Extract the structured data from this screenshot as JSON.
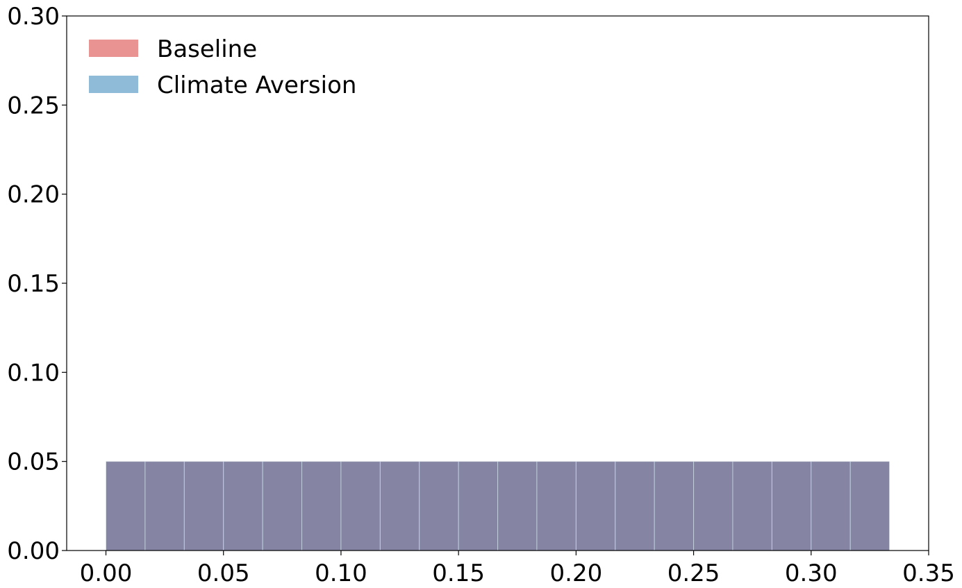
{
  "chart_data": {
    "type": "bar",
    "subtype": "histogram",
    "title": "",
    "xlabel": "",
    "ylabel": "",
    "xlim": [
      -0.0167,
      0.35
    ],
    "ylim": [
      0,
      0.3
    ],
    "grid": false,
    "legend_position": "top-left",
    "bin_edges": [
      0.0,
      0.01667,
      0.03333,
      0.05,
      0.06667,
      0.08333,
      0.1,
      0.11667,
      0.13333,
      0.15,
      0.16667,
      0.18333,
      0.2,
      0.21667,
      0.23333,
      0.25,
      0.26667,
      0.28333,
      0.3,
      0.31667,
      0.33333
    ],
    "x_ticks": [
      "0.00",
      "0.05",
      "0.10",
      "0.15",
      "0.20",
      "0.25",
      "0.30",
      "0.35"
    ],
    "y_ticks": [
      "0.00",
      "0.05",
      "0.10",
      "0.15",
      "0.20",
      "0.25",
      "0.30"
    ],
    "series": [
      {
        "name": "Baseline",
        "color": "#d62728",
        "alpha": 0.5,
        "values": [
          0.05,
          0.05,
          0.05,
          0.05,
          0.05,
          0.05,
          0.05,
          0.05,
          0.05,
          0.05,
          0.05,
          0.05,
          0.05,
          0.05,
          0.05,
          0.05,
          0.05,
          0.05,
          0.05,
          0.05
        ]
      },
      {
        "name": "Climate Aversion",
        "color": "#1f77b4",
        "alpha": 0.5,
        "values": [
          0.05,
          0.05,
          0.05,
          0.05,
          0.05,
          0.05,
          0.05,
          0.05,
          0.05,
          0.05,
          0.05,
          0.05,
          0.05,
          0.05,
          0.05,
          0.05,
          0.05,
          0.05,
          0.05,
          0.05
        ]
      }
    ]
  }
}
